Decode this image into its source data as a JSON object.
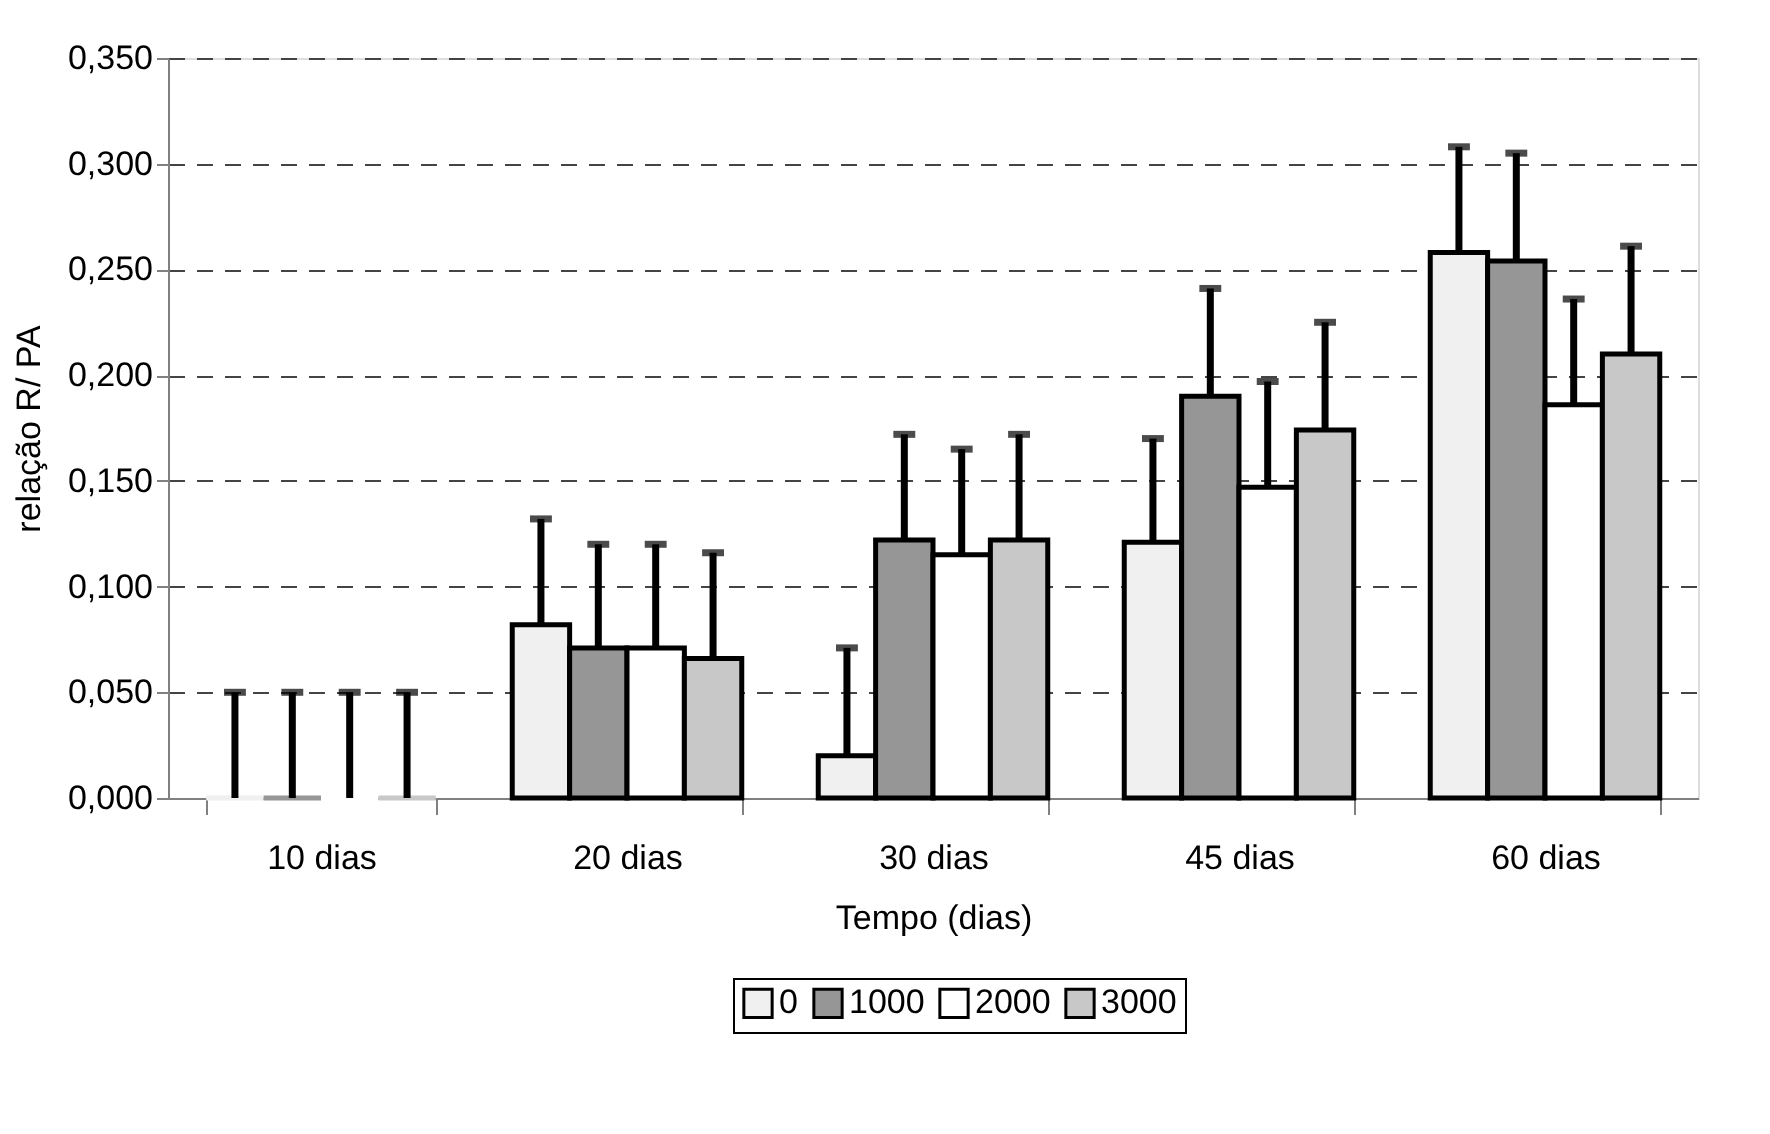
{
  "chart_data": {
    "type": "bar",
    "xlabel": "Tempo (dias)",
    "ylabel": "relação R/ PA",
    "categories": [
      "10 dias",
      "20 dias",
      "30 dias",
      "45 dias",
      "60 dias"
    ],
    "series": [
      {
        "name": "0",
        "color": "#f0f0f0",
        "values": [
          0,
          0.082,
          0.02,
          0.121,
          0.258
        ],
        "errors": [
          [
            0,
            0.05
          ],
          [
            0.082,
            0.132
          ],
          [
            0.02,
            0.071
          ],
          [
            0.121,
            0.17
          ],
          [
            0.258,
            0.308
          ]
        ]
      },
      {
        "name": "1000",
        "color": "#969696",
        "values": [
          0,
          0.071,
          0.122,
          0.19,
          0.254
        ],
        "errors": [
          [
            0,
            0.05
          ],
          [
            0.071,
            0.12
          ],
          [
            0.122,
            0.172
          ],
          [
            0.19,
            0.241
          ],
          [
            0.254,
            0.305
          ]
        ]
      },
      {
        "name": "2000",
        "color": "#ffffff",
        "values": [
          0,
          0.071,
          0.115,
          0.147,
          0.186
        ],
        "errors": [
          [
            0,
            0.05
          ],
          [
            0.071,
            0.12
          ],
          [
            0.115,
            0.165
          ],
          [
            0.147,
            0.197
          ],
          [
            0.186,
            0.236
          ]
        ]
      },
      {
        "name": "3000",
        "color": "#c8c8c8",
        "values": [
          0,
          0.066,
          0.122,
          0.174,
          0.21
        ],
        "errors": [
          [
            0,
            0.05
          ],
          [
            0.066,
            0.116
          ],
          [
            0.122,
            0.172
          ],
          [
            0.174,
            0.225
          ],
          [
            0.21,
            0.261
          ]
        ]
      }
    ],
    "ylim": [
      0,
      0.35
    ],
    "yticks": [
      {
        "value": 0,
        "label": "0,000"
      },
      {
        "value": 0.05,
        "label": "0,050"
      },
      {
        "value": 0.1,
        "label": "0,100"
      },
      {
        "value": 0.15,
        "label": "0,150"
      },
      {
        "value": 0.2,
        "label": "0,200"
      },
      {
        "value": 0.25,
        "label": "0,250"
      },
      {
        "value": 0.3,
        "label": "0,300"
      },
      {
        "value": 0.35,
        "label": "0,350"
      }
    ],
    "grid": "y",
    "legend": "bottom"
  }
}
